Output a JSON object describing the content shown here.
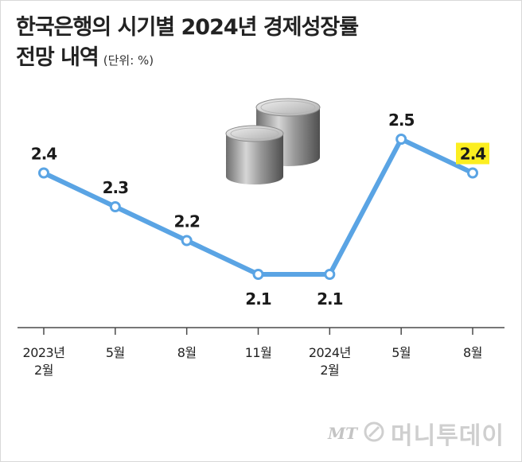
{
  "title_line1": "한국은행의 시기별 2024년 경제성장률",
  "title_line2": "전망 내역",
  "unit": "(단위: %)",
  "watermark": {
    "mt": "MT",
    "name": "머니투데이"
  },
  "colors": {
    "line": "#5aa4e4",
    "highlight": "#fcee21",
    "axis": "#4a4a4a"
  },
  "chart_data": {
    "type": "line",
    "title": "한국은행의 시기별 2024년 경제성장률 전망 내역",
    "unit": "(단위: %)",
    "categories": [
      [
        "2023년",
        "2월"
      ],
      [
        "5월"
      ],
      [
        "8월"
      ],
      [
        "11월"
      ],
      [
        "2024년",
        "2월"
      ],
      [
        "5월"
      ],
      [
        "8월"
      ]
    ],
    "values": [
      2.4,
      2.3,
      2.2,
      2.1,
      2.1,
      2.5,
      2.4
    ],
    "value_labels": [
      "2.4",
      "2.3",
      "2.2",
      "2.1",
      "2.1",
      "2.5",
      "2.4"
    ],
    "label_position": [
      "above",
      "above",
      "above",
      "below",
      "below",
      "above",
      "above"
    ],
    "highlight_index": 6,
    "ylim": [
      1.9,
      2.7
    ],
    "grid": false,
    "legend": "none"
  }
}
